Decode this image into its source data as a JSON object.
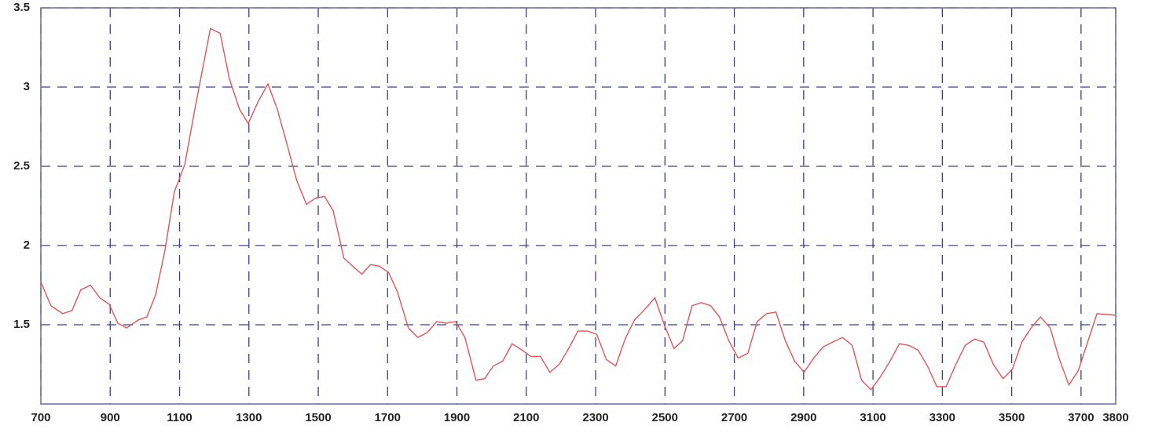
{
  "chart_data": {
    "type": "line",
    "x": [
      700,
      729,
      763,
      790,
      815,
      843,
      870,
      897,
      922,
      947,
      981,
      1006,
      1031,
      1058,
      1085,
      1115,
      1144,
      1189,
      1217,
      1244,
      1273,
      1298,
      1327,
      1355,
      1382,
      1411,
      1438,
      1466,
      1493,
      1518,
      1543,
      1574,
      1599,
      1626,
      1651,
      1676,
      1703,
      1728,
      1760,
      1787,
      1814,
      1842,
      1869,
      1896,
      1923,
      1955,
      1980,
      2005,
      2032,
      2059,
      2088,
      2113,
      2141,
      2168,
      2195,
      2222,
      2249,
      2276,
      2303,
      2331,
      2358,
      2385,
      2412,
      2439,
      2471,
      2498,
      2526,
      2551,
      2578,
      2605,
      2632,
      2657,
      2684,
      2711,
      2739,
      2766,
      2793,
      2820,
      2847,
      2874,
      2901,
      2929,
      2956,
      2983,
      3012,
      3040,
      3067,
      3094,
      3121,
      3149,
      3176,
      3203,
      3230,
      3257,
      3284,
      3311,
      3339,
      3366,
      3393,
      3420,
      3447,
      3475,
      3502,
      3529,
      3556,
      3583,
      3611,
      3638,
      3665,
      3692,
      3719,
      3746,
      3800
    ],
    "series": [
      {
        "color": "#e05555",
        "values": [
          1.77,
          1.62,
          1.57,
          1.59,
          1.72,
          1.75,
          1.67,
          1.63,
          1.51,
          1.48,
          1.53,
          1.55,
          1.69,
          1.97,
          2.34,
          2.51,
          2.86,
          3.37,
          3.34,
          3.05,
          2.86,
          2.77,
          2.91,
          3.02,
          2.86,
          2.63,
          2.41,
          2.26,
          2.3,
          2.31,
          2.22,
          1.92,
          1.87,
          1.82,
          1.88,
          1.87,
          1.83,
          1.71,
          1.48,
          1.42,
          1.45,
          1.52,
          1.51,
          1.52,
          1.42,
          1.15,
          1.16,
          1.24,
          1.27,
          1.38,
          1.34,
          1.3,
          1.3,
          1.2,
          1.25,
          1.35,
          1.46,
          1.46,
          1.44,
          1.28,
          1.24,
          1.41,
          1.53,
          1.59,
          1.67,
          1.5,
          1.35,
          1.4,
          1.62,
          1.64,
          1.62,
          1.55,
          1.4,
          1.29,
          1.32,
          1.52,
          1.57,
          1.58,
          1.4,
          1.27,
          1.2,
          1.29,
          1.36,
          1.39,
          1.42,
          1.37,
          1.15,
          1.09,
          1.17,
          1.27,
          1.38,
          1.37,
          1.34,
          1.24,
          1.11,
          1.11,
          1.25,
          1.37,
          1.41,
          1.39,
          1.25,
          1.16,
          1.22,
          1.39,
          1.48,
          1.55,
          1.48,
          1.28,
          1.12,
          1.21,
          1.39,
          1.57,
          1.56
        ]
      }
    ],
    "xlim": [
      700,
      3800
    ],
    "ylim": [
      1,
      3.5
    ],
    "xticks": [
      700,
      900,
      1100,
      1300,
      1500,
      1700,
      1900,
      2100,
      2300,
      2500,
      2700,
      2900,
      3100,
      3300,
      3500,
      3700,
      3800
    ],
    "yticks": [
      1.5,
      2,
      2.5,
      3,
      3.5
    ],
    "grid": true
  }
}
